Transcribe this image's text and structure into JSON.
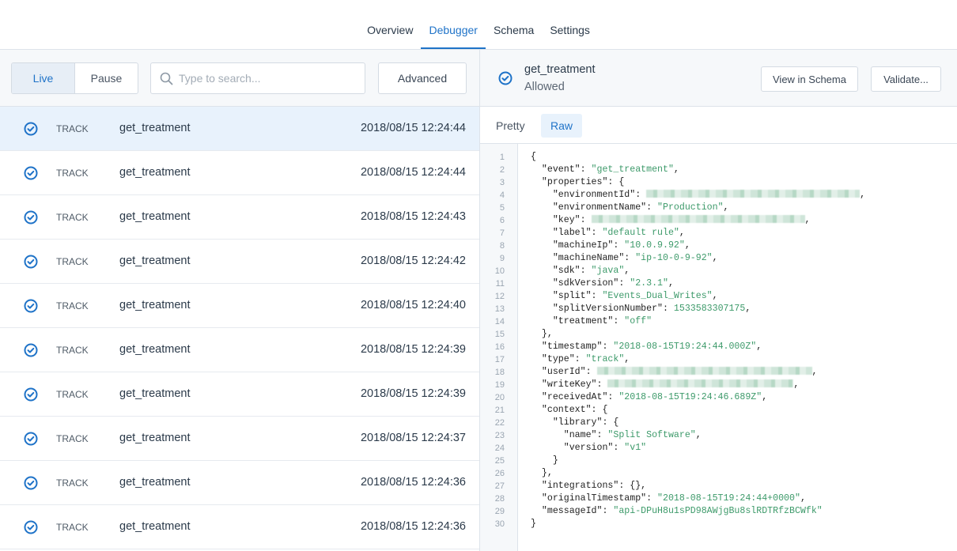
{
  "nav": {
    "tabs": [
      {
        "label": "Overview"
      },
      {
        "label": "Debugger",
        "active": true
      },
      {
        "label": "Schema"
      },
      {
        "label": "Settings"
      }
    ]
  },
  "toolbar": {
    "live": "Live",
    "pause": "Pause",
    "search_placeholder": "Type to search...",
    "advanced": "Advanced"
  },
  "events": [
    {
      "type": "TRACK",
      "name": "get_treatment",
      "time": "2018/08/15 12:24:44",
      "selected": true
    },
    {
      "type": "TRACK",
      "name": "get_treatment",
      "time": "2018/08/15 12:24:44"
    },
    {
      "type": "TRACK",
      "name": "get_treatment",
      "time": "2018/08/15 12:24:43"
    },
    {
      "type": "TRACK",
      "name": "get_treatment",
      "time": "2018/08/15 12:24:42"
    },
    {
      "type": "TRACK",
      "name": "get_treatment",
      "time": "2018/08/15 12:24:40"
    },
    {
      "type": "TRACK",
      "name": "get_treatment",
      "time": "2018/08/15 12:24:39"
    },
    {
      "type": "TRACK",
      "name": "get_treatment",
      "time": "2018/08/15 12:24:39"
    },
    {
      "type": "TRACK",
      "name": "get_treatment",
      "time": "2018/08/15 12:24:37"
    },
    {
      "type": "TRACK",
      "name": "get_treatment",
      "time": "2018/08/15 12:24:36"
    },
    {
      "type": "TRACK",
      "name": "get_treatment",
      "time": "2018/08/15 12:24:36"
    }
  ],
  "detail": {
    "title": "get_treatment",
    "status": "Allowed",
    "view_schema": "View in Schema",
    "validate": "Validate...",
    "tabs": {
      "pretty": "Pretty",
      "raw": "Raw"
    }
  },
  "colors": {
    "accent": "#1f73c8",
    "string": "#3d9a6a",
    "selected_row": "#e8f2fc"
  },
  "icons": {
    "status": "check-circle-icon",
    "search": "search-icon"
  },
  "code": [
    {
      "i": 0,
      "pre": "{"
    },
    {
      "i": 1,
      "pre": "\"event\": ",
      "v": "\"get_treatment\"",
      "post": ","
    },
    {
      "i": 1,
      "pre": "\"properties\": {"
    },
    {
      "i": 2,
      "pre": "\"environmentId\": ",
      "redacted": true,
      "post": ","
    },
    {
      "i": 2,
      "pre": "\"environmentName\": ",
      "v": "\"Production\"",
      "post": ","
    },
    {
      "i": 2,
      "pre": "\"key\": ",
      "redacted": true,
      "post": ","
    },
    {
      "i": 2,
      "pre": "\"label\": ",
      "v": "\"default rule\"",
      "post": ","
    },
    {
      "i": 2,
      "pre": "\"machineIp\": ",
      "v": "\"10.0.9.92\"",
      "post": ","
    },
    {
      "i": 2,
      "pre": "\"machineName\": ",
      "v": "\"ip-10-0-9-92\"",
      "post": ","
    },
    {
      "i": 2,
      "pre": "\"sdk\": ",
      "v": "\"java\"",
      "post": ","
    },
    {
      "i": 2,
      "pre": "\"sdkVersion\": ",
      "v": "\"2.3.1\"",
      "post": ","
    },
    {
      "i": 2,
      "pre": "\"split\": ",
      "v": "\"Events_Dual_Writes\"",
      "post": ","
    },
    {
      "i": 2,
      "pre": "\"splitVersionNumber\": ",
      "v": "1533583307175",
      "post": ","
    },
    {
      "i": 2,
      "pre": "\"treatment\": ",
      "v": "\"off\""
    },
    {
      "i": 1,
      "pre": "},"
    },
    {
      "i": 1,
      "pre": "\"timestamp\": ",
      "v": "\"2018-08-15T19:24:44.000Z\"",
      "post": ","
    },
    {
      "i": 1,
      "pre": "\"type\": ",
      "v": "\"track\"",
      "post": ","
    },
    {
      "i": 1,
      "pre": "\"userId\": ",
      "redacted": true,
      "post": ","
    },
    {
      "i": 1,
      "pre": "\"writeKey\": ",
      "redacted": true,
      "post": ","
    },
    {
      "i": 1,
      "pre": "\"receivedAt\": ",
      "v": "\"2018-08-15T19:24:46.689Z\"",
      "post": ","
    },
    {
      "i": 1,
      "pre": "\"context\": {"
    },
    {
      "i": 2,
      "pre": "\"library\": {"
    },
    {
      "i": 3,
      "pre": "\"name\": ",
      "v": "\"Split Software\"",
      "post": ","
    },
    {
      "i": 3,
      "pre": "\"version\": ",
      "v": "\"v1\""
    },
    {
      "i": 2,
      "pre": "}"
    },
    {
      "i": 1,
      "pre": "},"
    },
    {
      "i": 1,
      "pre": "\"integrations\": {},"
    },
    {
      "i": 1,
      "pre": "\"originalTimestamp\": ",
      "v": "\"2018-08-15T19:24:44+0000\"",
      "post": ","
    },
    {
      "i": 1,
      "pre": "\"messageId\": ",
      "v": "\"api-DPuH8u1sPD98AWjgBu8slRDTRfzBCWfk\""
    },
    {
      "i": 0,
      "pre": "}"
    }
  ]
}
